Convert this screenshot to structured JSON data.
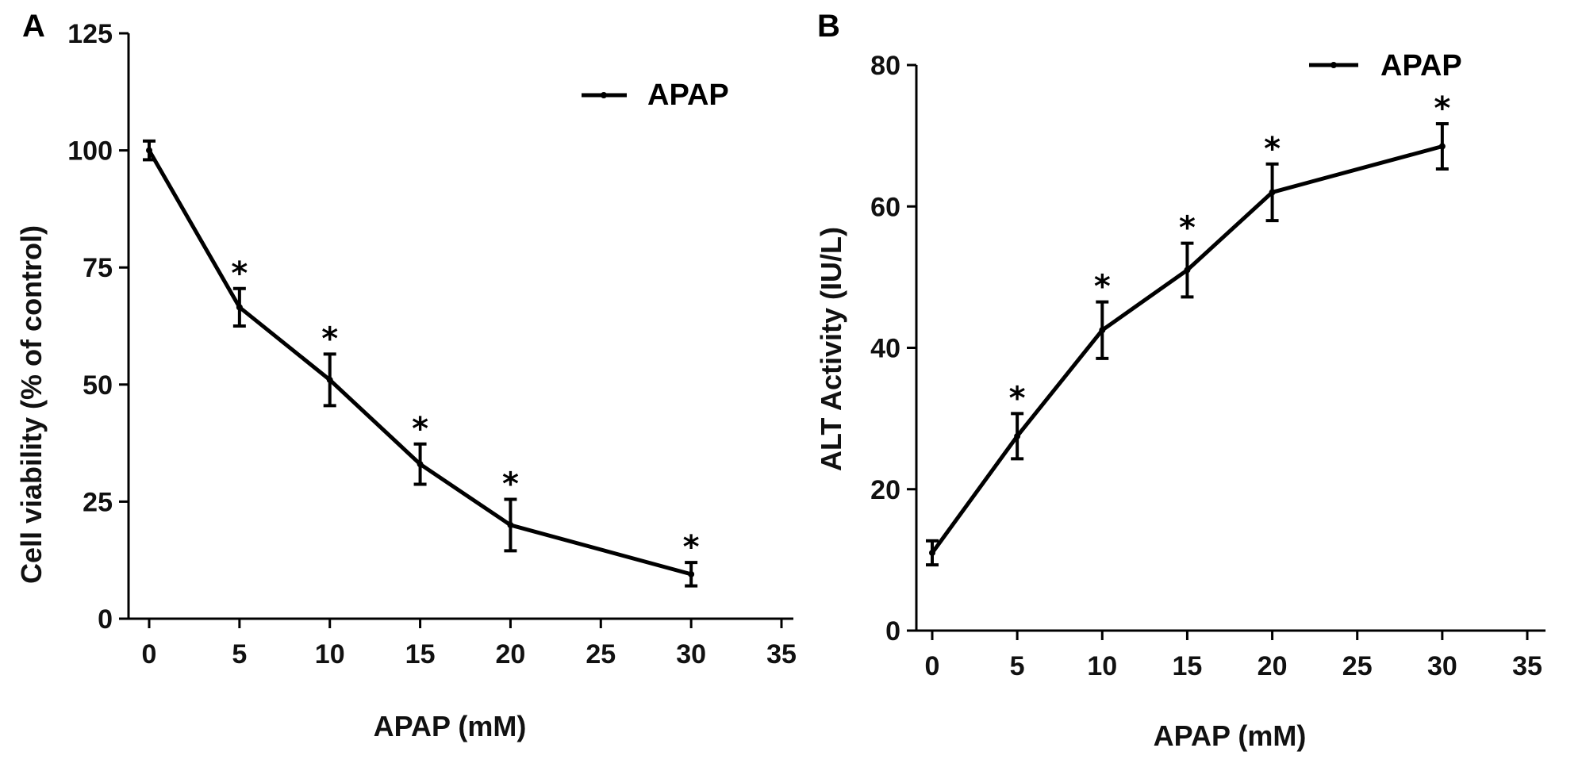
{
  "chart_data": [
    {
      "type": "line",
      "panel": "A",
      "title": "",
      "xlabel": "APAP (mM)",
      "ylabel": "Cell viability (% of control)",
      "xlim": [
        0,
        35
      ],
      "ylim": [
        0,
        125
      ],
      "xticks": [
        0,
        5,
        10,
        15,
        20,
        25,
        30,
        35
      ],
      "yticks": [
        0,
        25,
        50,
        75,
        100,
        125
      ],
      "legend": {
        "label": "APAP",
        "position": "top-right"
      },
      "series": [
        {
          "name": "APAP",
          "x": [
            0,
            5,
            10,
            15,
            20,
            30
          ],
          "y": [
            100,
            66.5,
            51,
            33,
            20,
            9.5
          ],
          "err": [
            2,
            4,
            5.5,
            4.3,
            5.5,
            2.5
          ],
          "significant": [
            false,
            true,
            true,
            true,
            true,
            true
          ]
        }
      ],
      "sig_marker": "*"
    },
    {
      "type": "line",
      "panel": "B",
      "title": "",
      "xlabel": "APAP (mM)",
      "ylabel": "ALT Activity (IU/L)",
      "xlim": [
        0,
        35
      ],
      "ylim": [
        0,
        80
      ],
      "xticks": [
        0,
        5,
        10,
        15,
        20,
        25,
        30,
        35
      ],
      "yticks": [
        0,
        20,
        40,
        60,
        80
      ],
      "legend": {
        "label": "APAP",
        "position": "top-right"
      },
      "series": [
        {
          "name": "APAP",
          "x": [
            0,
            5,
            10,
            15,
            20,
            30
          ],
          "y": [
            11,
            27.5,
            42.5,
            51,
            62,
            68.5
          ],
          "err": [
            1.7,
            3.2,
            4,
            3.8,
            4,
            3.2
          ],
          "significant": [
            false,
            true,
            true,
            true,
            true,
            true
          ]
        }
      ],
      "sig_marker": "*"
    }
  ]
}
